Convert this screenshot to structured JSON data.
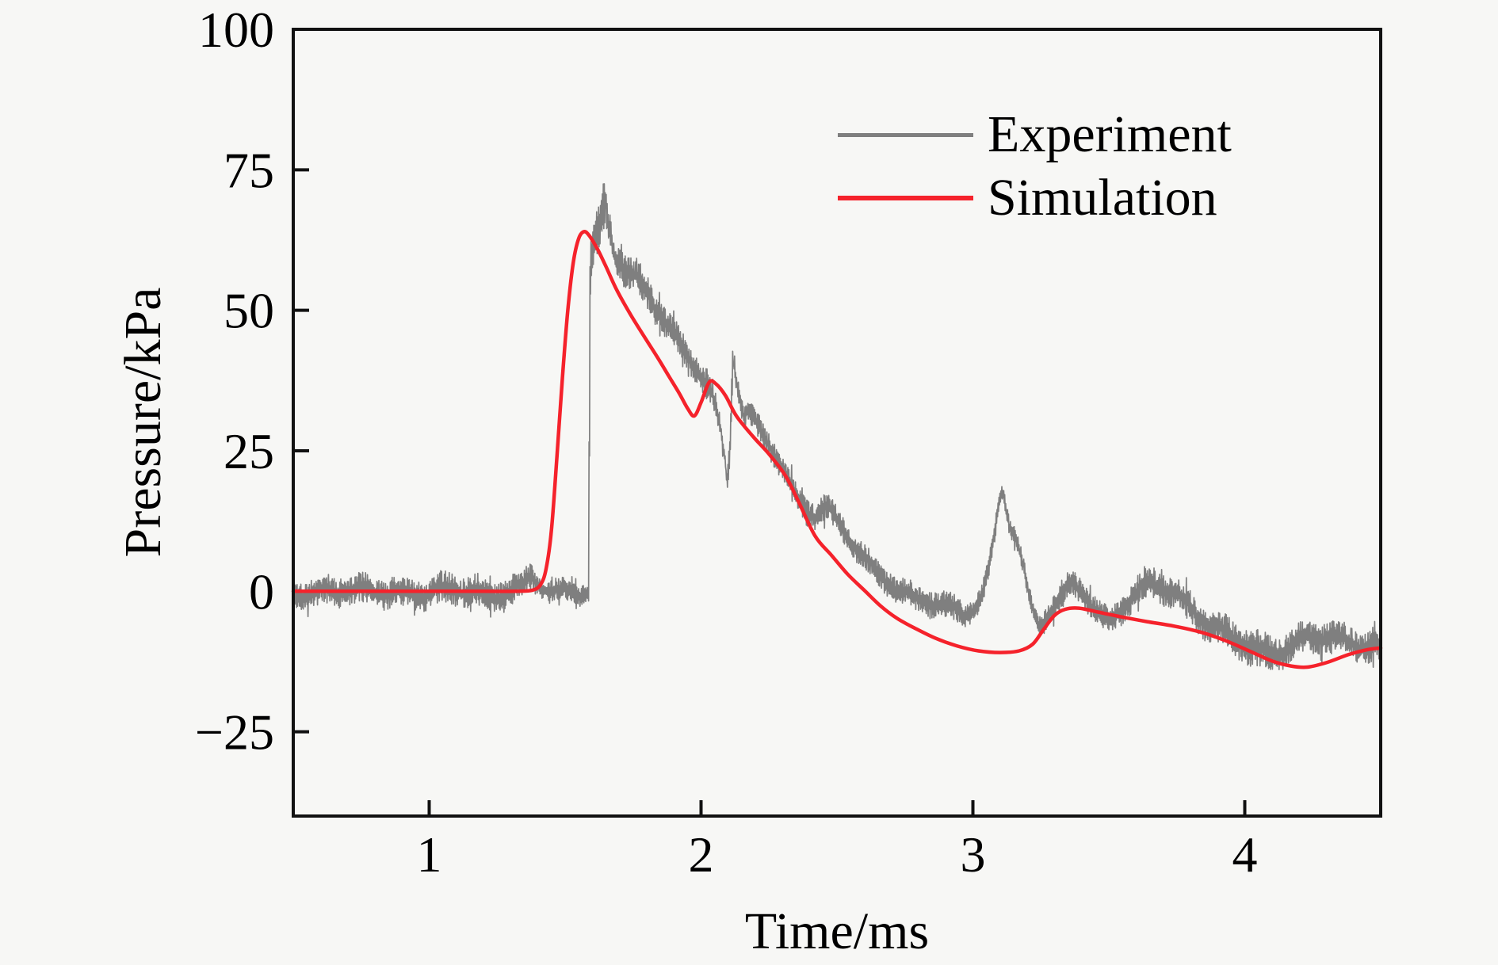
{
  "figure": {
    "background": "#f7f7f5",
    "frame_color": "#111111",
    "text_color": "#000000"
  },
  "chart_data": {
    "type": "line",
    "title": "",
    "xlabel": "Time/ms",
    "ylabel": "Pressure/kPa",
    "xlim": [
      0.5,
      4.5
    ],
    "ylim": [
      -40,
      100
    ],
    "grid": false,
    "legend_position": "upper right inside, no frame",
    "xticks": [
      {
        "value": 1,
        "label": "1"
      },
      {
        "value": 2,
        "label": "2"
      },
      {
        "value": 3,
        "label": "3"
      },
      {
        "value": 4,
        "label": "4"
      }
    ],
    "yticks": [
      {
        "value": 100,
        "label": "100"
      },
      {
        "value": 75,
        "label": "75"
      },
      {
        "value": 50,
        "label": "50"
      },
      {
        "value": 25,
        "label": "25"
      },
      {
        "value": 0,
        "label": "0"
      },
      {
        "value": -25,
        "label": "−25"
      }
    ],
    "series": [
      {
        "name": "Experiment",
        "color": "#7f7f7f",
        "style": "noisy",
        "line_width": 1.7,
        "noise_seed": 11,
        "points_format": [
          "time_ms",
          "pressure_kpa",
          "noise_amplitude_kpa"
        ],
        "points": [
          [
            0.5,
            0,
            2.6
          ],
          [
            0.62,
            0,
            2.6
          ],
          [
            0.74,
            -0.3,
            2.7
          ],
          [
            0.86,
            0.2,
            2.7
          ],
          [
            0.98,
            -0.3,
            2.8
          ],
          [
            1.1,
            0,
            2.9
          ],
          [
            1.2,
            -0.6,
            3.0
          ],
          [
            1.28,
            0,
            2.7
          ],
          [
            1.34,
            0.8,
            2.5
          ],
          [
            1.375,
            2.8,
            2.3
          ],
          [
            1.4,
            1.2,
            2.1
          ],
          [
            1.44,
            -0.6,
            2.0
          ],
          [
            1.48,
            -0.2,
            2.0
          ],
          [
            1.52,
            0.2,
            1.9
          ],
          [
            1.555,
            -0.4,
            1.8
          ],
          [
            1.585,
            0,
            1.8
          ],
          [
            1.592,
            58,
            4.0
          ],
          [
            1.605,
            62,
            4.0
          ],
          [
            1.625,
            64,
            5.0
          ],
          [
            1.645,
            70,
            4.0
          ],
          [
            1.658,
            67,
            4.0
          ],
          [
            1.672,
            62.5,
            3.6
          ],
          [
            1.69,
            59.5,
            3.2
          ],
          [
            1.715,
            57.5,
            3.0
          ],
          [
            1.745,
            55.5,
            3.0
          ],
          [
            1.775,
            54.5,
            3.0
          ],
          [
            1.805,
            52.5,
            3.0
          ],
          [
            1.835,
            50,
            2.8
          ],
          [
            1.865,
            47.8,
            2.7
          ],
          [
            1.9,
            45.5,
            2.6
          ],
          [
            1.94,
            43,
            2.6
          ],
          [
            1.98,
            40.5,
            2.6
          ],
          [
            2.02,
            37,
            2.4
          ],
          [
            2.05,
            33.5,
            2.2
          ],
          [
            2.07,
            29,
            2.0
          ],
          [
            2.085,
            24,
            1.8
          ],
          [
            2.096,
            19.5,
            1.5
          ],
          [
            2.106,
            26,
            1.8
          ],
          [
            2.116,
            41.5,
            1.8
          ],
          [
            2.128,
            38,
            2.0
          ],
          [
            2.142,
            34,
            2.0
          ],
          [
            2.156,
            30.5,
            2.0
          ],
          [
            2.172,
            32,
            2.0
          ],
          [
            2.19,
            30,
            2.2
          ],
          [
            2.22,
            28,
            2.4
          ],
          [
            2.26,
            25.5,
            2.4
          ],
          [
            2.3,
            22,
            2.4
          ],
          [
            2.34,
            18,
            2.4
          ],
          [
            2.38,
            15,
            2.4
          ],
          [
            2.42,
            13.8,
            2.4
          ],
          [
            2.46,
            14.8,
            2.4
          ],
          [
            2.5,
            12,
            2.4
          ],
          [
            2.54,
            9.5,
            2.4
          ],
          [
            2.58,
            7,
            2.4
          ],
          [
            2.62,
            4.6,
            2.4
          ],
          [
            2.67,
            2.6,
            2.4
          ],
          [
            2.72,
            0.9,
            2.4
          ],
          [
            2.77,
            -0.7,
            2.4
          ],
          [
            2.82,
            -1.8,
            2.4
          ],
          [
            2.87,
            -2.6,
            2.4
          ],
          [
            2.92,
            -3.4,
            2.3
          ],
          [
            2.97,
            -4.0,
            2.2
          ],
          [
            3.005,
            -3.0,
            2.0
          ],
          [
            3.035,
            -0.5,
            1.8
          ],
          [
            3.06,
            5,
            1.8
          ],
          [
            3.08,
            11,
            1.8
          ],
          [
            3.095,
            16,
            1.6
          ],
          [
            3.106,
            18.5,
            1.5
          ],
          [
            3.12,
            15.5,
            1.8
          ],
          [
            3.136,
            11.5,
            1.8
          ],
          [
            3.152,
            10,
            1.8
          ],
          [
            3.168,
            8,
            1.8
          ],
          [
            3.185,
            4,
            1.8
          ],
          [
            3.205,
            -1,
            1.8
          ],
          [
            3.225,
            -4.6,
            1.8
          ],
          [
            3.248,
            -6.4,
            1.8
          ],
          [
            3.272,
            -4.8,
            2.0
          ],
          [
            3.3,
            -2.6,
            2.2
          ],
          [
            3.33,
            -0.6,
            2.4
          ],
          [
            3.36,
            1.4,
            2.4
          ],
          [
            3.4,
            0.4,
            2.4
          ],
          [
            3.43,
            -1.6,
            2.4
          ],
          [
            3.46,
            -3.6,
            2.4
          ],
          [
            3.49,
            -4.9,
            2.4
          ],
          [
            3.52,
            -4.4,
            2.4
          ],
          [
            3.555,
            -2.9,
            2.4
          ],
          [
            3.59,
            -1.1,
            2.4
          ],
          [
            3.63,
            0.4,
            2.6
          ],
          [
            3.67,
            1.0,
            2.6
          ],
          [
            3.71,
            0.6,
            2.8
          ],
          [
            3.75,
            -0.4,
            2.8
          ],
          [
            3.79,
            -2.0,
            2.8
          ],
          [
            3.83,
            -4.0,
            2.8
          ],
          [
            3.87,
            -5.8,
            2.8
          ],
          [
            3.91,
            -7.2,
            2.8
          ],
          [
            3.96,
            -8.8,
            3.0
          ],
          [
            4.01,
            -10.2,
            3.2
          ],
          [
            4.06,
            -11.2,
            3.4
          ],
          [
            4.11,
            -10.6,
            3.0
          ],
          [
            4.16,
            -9.4,
            2.8
          ],
          [
            4.21,
            -8.2,
            2.8
          ],
          [
            4.26,
            -8.0,
            2.8
          ],
          [
            4.31,
            -8.6,
            2.8
          ],
          [
            4.36,
            -9.2,
            2.8
          ],
          [
            4.41,
            -9.6,
            2.8
          ],
          [
            4.46,
            -9.9,
            2.8
          ],
          [
            4.5,
            -10.0,
            2.8
          ]
        ]
      },
      {
        "name": "Simulation",
        "color": "#f5222b",
        "style": "smooth",
        "line_width": 4.5,
        "points_format": [
          "time_ms",
          "pressure_kpa"
        ],
        "points": [
          [
            0.5,
            0
          ],
          [
            0.75,
            0
          ],
          [
            1.0,
            0
          ],
          [
            1.2,
            0
          ],
          [
            1.32,
            0
          ],
          [
            1.38,
            0.2
          ],
          [
            1.41,
            1.2
          ],
          [
            1.43,
            4
          ],
          [
            1.45,
            11
          ],
          [
            1.47,
            24
          ],
          [
            1.49,
            38
          ],
          [
            1.51,
            50
          ],
          [
            1.53,
            58.5
          ],
          [
            1.55,
            62.8
          ],
          [
            1.57,
            64
          ],
          [
            1.59,
            63.2
          ],
          [
            1.62,
            60.8
          ],
          [
            1.65,
            57.8
          ],
          [
            1.69,
            53.6
          ],
          [
            1.74,
            49.3
          ],
          [
            1.79,
            45.4
          ],
          [
            1.84,
            41.6
          ],
          [
            1.88,
            38.4
          ],
          [
            1.92,
            35.2
          ],
          [
            1.95,
            32.6
          ],
          [
            1.975,
            31.2
          ],
          [
            2.0,
            33.6
          ],
          [
            2.03,
            37.2
          ],
          [
            2.055,
            36.9
          ],
          [
            2.09,
            34.8
          ],
          [
            2.13,
            31.2
          ],
          [
            2.19,
            27.6
          ],
          [
            2.25,
            24.4
          ],
          [
            2.31,
            20.6
          ],
          [
            2.36,
            15.8
          ],
          [
            2.42,
            9.8
          ],
          [
            2.48,
            6.4
          ],
          [
            2.54,
            3.0
          ],
          [
            2.6,
            0.2
          ],
          [
            2.66,
            -2.6
          ],
          [
            2.72,
            -4.8
          ],
          [
            2.78,
            -6.4
          ],
          [
            2.86,
            -8.3
          ],
          [
            2.94,
            -9.7
          ],
          [
            3.02,
            -10.6
          ],
          [
            3.1,
            -10.9
          ],
          [
            3.17,
            -10.6
          ],
          [
            3.22,
            -9.4
          ],
          [
            3.26,
            -6.8
          ],
          [
            3.3,
            -4.3
          ],
          [
            3.34,
            -3.2
          ],
          [
            3.39,
            -3.0
          ],
          [
            3.46,
            -3.7
          ],
          [
            3.54,
            -4.5
          ],
          [
            3.64,
            -5.4
          ],
          [
            3.74,
            -6.2
          ],
          [
            3.84,
            -7.3
          ],
          [
            3.93,
            -8.8
          ],
          [
            4.02,
            -10.7
          ],
          [
            4.1,
            -12.4
          ],
          [
            4.17,
            -13.3
          ],
          [
            4.23,
            -13.5
          ],
          [
            4.3,
            -12.7
          ],
          [
            4.38,
            -11.3
          ],
          [
            4.45,
            -10.4
          ],
          [
            4.5,
            -10.1
          ]
        ]
      }
    ]
  }
}
